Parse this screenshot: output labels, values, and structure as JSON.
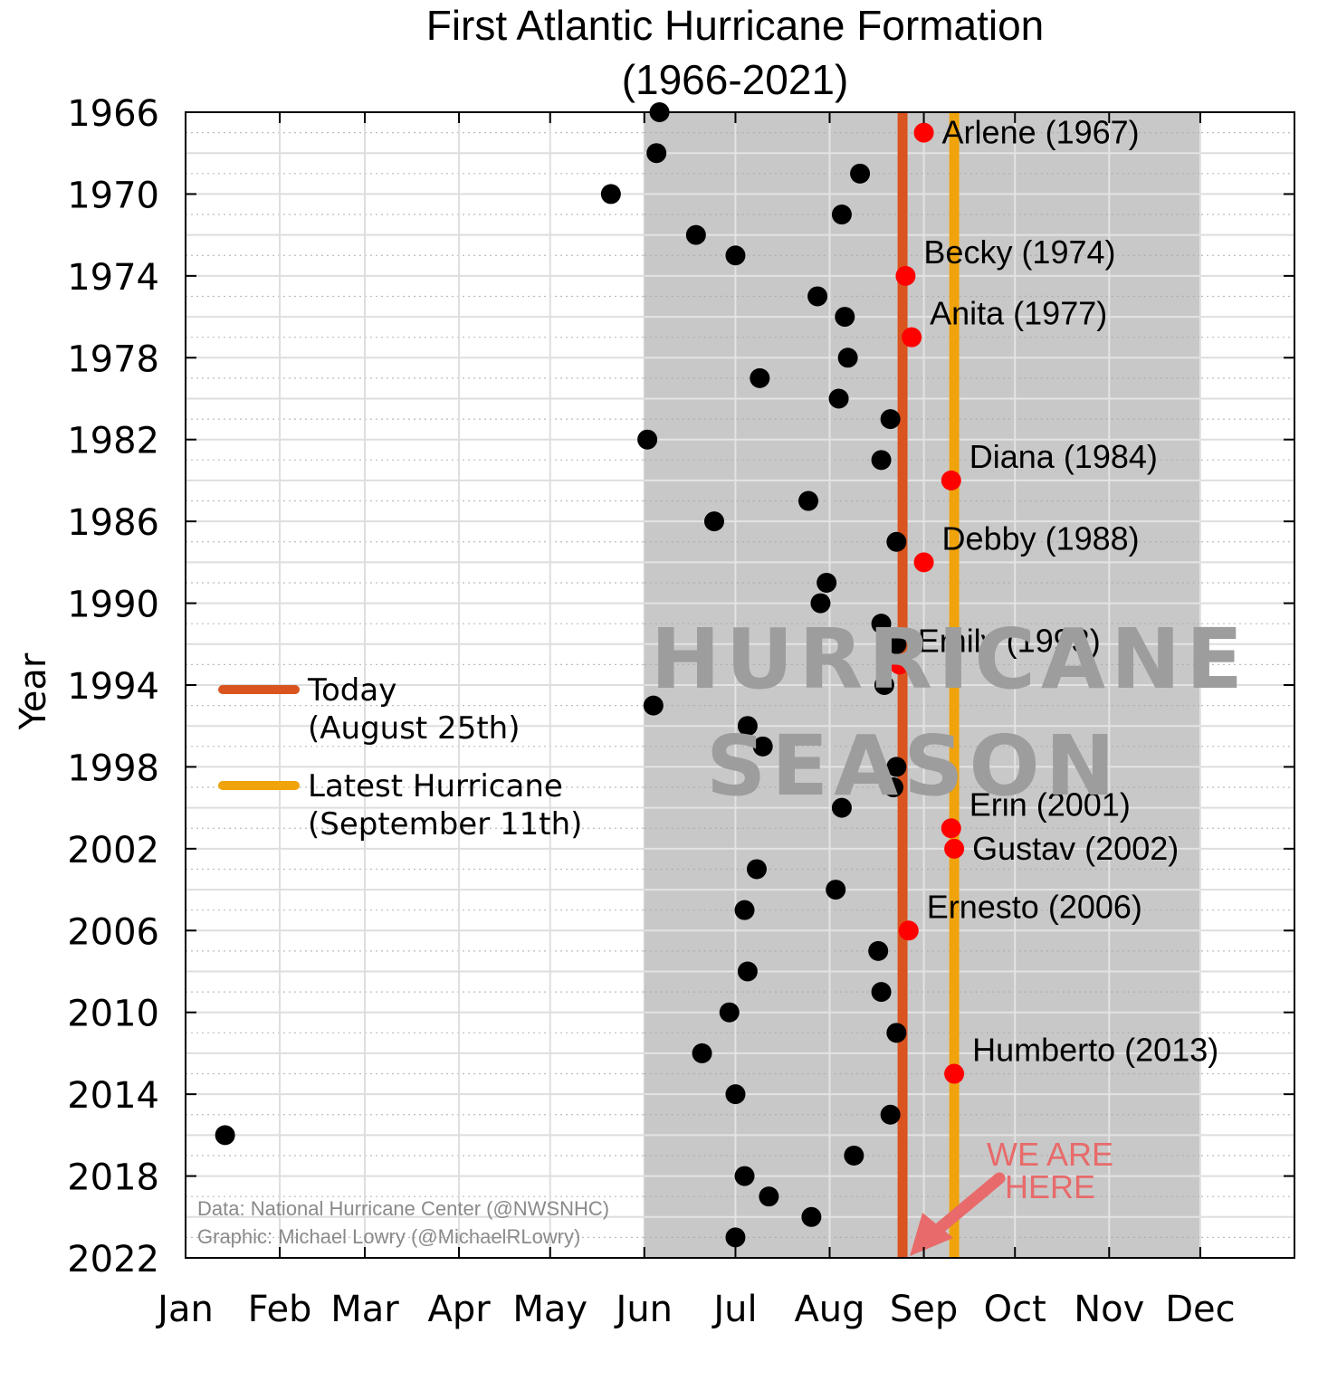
{
  "chart_data": {
    "type": "scatter",
    "title": [
      "First Atlantic Hurricane Formation",
      "(1966-2021)"
    ],
    "ylabel": "Year",
    "xlabel": "",
    "x_ticks": [
      "Jan",
      "Feb",
      "Mar",
      "Apr",
      "May",
      "Jun",
      "Jul",
      "Aug",
      "Sep",
      "Oct",
      "Nov",
      "Dec"
    ],
    "y_ticks": [
      1966,
      1970,
      1974,
      1978,
      1982,
      1986,
      1990,
      1994,
      1998,
      2002,
      2006,
      2010,
      2014,
      2018,
      2022
    ],
    "xlim": [
      "Jan 1",
      "Dec 31"
    ],
    "ylim": [
      2022,
      1966
    ],
    "y_reversed": true,
    "grid": true,
    "season_band": {
      "label": [
        "HURRICANE",
        "SEASON"
      ],
      "start": "Jun 1",
      "end": "Nov 30",
      "color": "#c8c8c8"
    },
    "reference_lines": [
      {
        "label": "Today",
        "sublabel": "(August 25th)",
        "date": "Aug 25",
        "color": "#d9541e"
      },
      {
        "label": "Latest Hurricane",
        "sublabel": "(September 11th)",
        "date": "Sep 11",
        "color": "#f0a30a"
      }
    ],
    "series": [
      {
        "color": "#000000",
        "points": [
          {
            "year": 1966,
            "date": "Jun 6"
          },
          {
            "year": 1968,
            "date": "Jun 5"
          },
          {
            "year": 1969,
            "date": "Aug 11"
          },
          {
            "year": 1970,
            "date": "May 21"
          },
          {
            "year": 1971,
            "date": "Aug 5"
          },
          {
            "year": 1972,
            "date": "Jun 18"
          },
          {
            "year": 1973,
            "date": "Jul 1"
          },
          {
            "year": 1975,
            "date": "Jul 28"
          },
          {
            "year": 1976,
            "date": "Aug 6"
          },
          {
            "year": 1978,
            "date": "Aug 7"
          },
          {
            "year": 1979,
            "date": "Jul 9"
          },
          {
            "year": 1980,
            "date": "Aug 4"
          },
          {
            "year": 1981,
            "date": "Aug 21"
          },
          {
            "year": 1982,
            "date": "Jun 2"
          },
          {
            "year": 1983,
            "date": "Aug 18"
          },
          {
            "year": 1985,
            "date": "Jul 25"
          },
          {
            "year": 1986,
            "date": "Jun 24"
          },
          {
            "year": 1987,
            "date": "Aug 23"
          },
          {
            "year": 1989,
            "date": "Jul 31"
          },
          {
            "year": 1990,
            "date": "Jul 29"
          },
          {
            "year": 1991,
            "date": "Aug 18"
          },
          {
            "year": 1992,
            "date": "Aug 23"
          },
          {
            "year": 1994,
            "date": "Aug 19"
          },
          {
            "year": 1995,
            "date": "Jun 4"
          },
          {
            "year": 1996,
            "date": "Jul 5"
          },
          {
            "year": 1997,
            "date": "Jul 10"
          },
          {
            "year": 1998,
            "date": "Aug 23"
          },
          {
            "year": 1999,
            "date": "Aug 22"
          },
          {
            "year": 2000,
            "date": "Aug 5"
          },
          {
            "year": 2003,
            "date": "Jul 8"
          },
          {
            "year": 2004,
            "date": "Aug 3"
          },
          {
            "year": 2005,
            "date": "Jul 4"
          },
          {
            "year": 2007,
            "date": "Aug 17"
          },
          {
            "year": 2008,
            "date": "Jul 5"
          },
          {
            "year": 2009,
            "date": "Aug 18"
          },
          {
            "year": 2010,
            "date": "Jun 29"
          },
          {
            "year": 2011,
            "date": "Aug 23"
          },
          {
            "year": 2012,
            "date": "Jun 20"
          },
          {
            "year": 2014,
            "date": "Jul 1"
          },
          {
            "year": 2015,
            "date": "Aug 21"
          },
          {
            "year": 2016,
            "date": "Jan 14"
          },
          {
            "year": 2017,
            "date": "Aug 9"
          },
          {
            "year": 2018,
            "date": "Jul 4"
          },
          {
            "year": 2019,
            "date": "Jul 12"
          },
          {
            "year": 2020,
            "date": "Jul 26"
          },
          {
            "year": 2021,
            "date": "Jul 1"
          }
        ]
      },
      {
        "color": "#ff0000",
        "points": [
          {
            "year": 1967,
            "date": "Sep 1",
            "label": "Arlene (1967)"
          },
          {
            "year": 1974,
            "date": "Aug 26",
            "label": "Becky (1974)"
          },
          {
            "year": 1977,
            "date": "Aug 28",
            "label": "Anita (1977)"
          },
          {
            "year": 1984,
            "date": "Sep 10",
            "label": "Diana (1984)"
          },
          {
            "year": 1988,
            "date": "Sep 1",
            "label": "Debby (1988)"
          },
          {
            "year": 1993,
            "date": "Aug 24",
            "label": "Emily (1993)"
          },
          {
            "year": 2001,
            "date": "Sep 10",
            "label": "Erin (2001)"
          },
          {
            "year": 2002,
            "date": "Sep 11",
            "label": "Gustav (2002)"
          },
          {
            "year": 2006,
            "date": "Aug 27",
            "label": "Ernesto (2006)"
          },
          {
            "year": 2013,
            "date": "Sep 11",
            "label": "Humberto (2013)"
          }
        ]
      }
    ],
    "annotations": [
      {
        "text": [
          "WE ARE",
          "HERE"
        ],
        "color": "#e86a6a"
      }
    ],
    "credits": [
      "Data: National Hurricane Center (@NWSNHC)",
      "Graphic: Michael Lowry (@MichaelRLowry)"
    ]
  }
}
